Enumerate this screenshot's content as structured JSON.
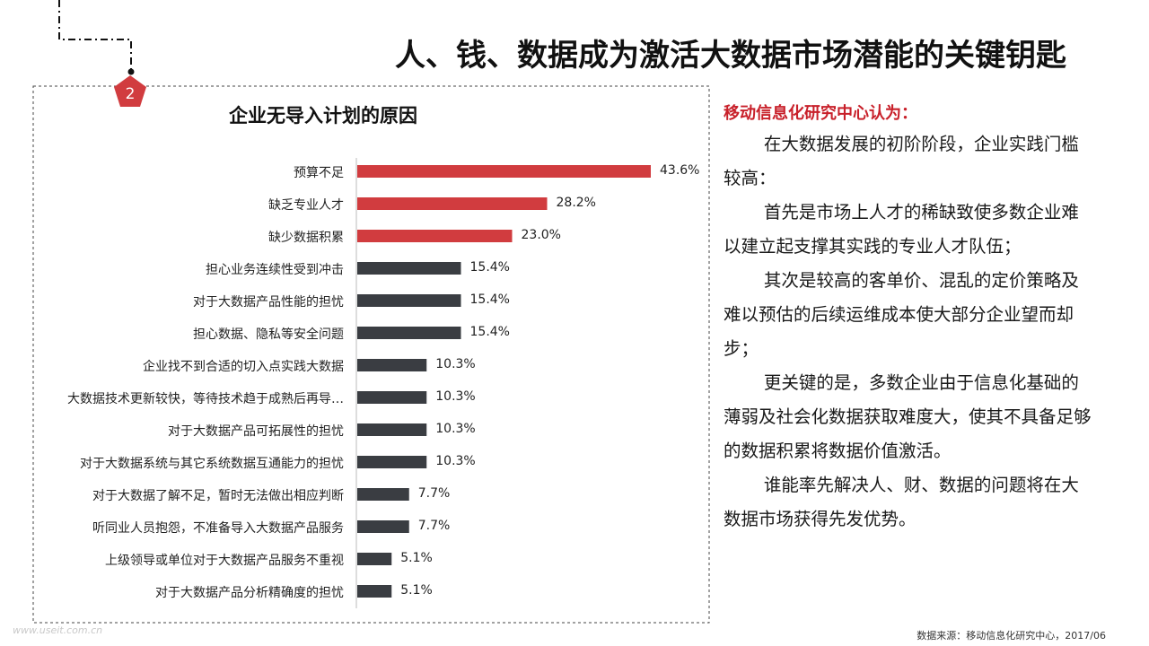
{
  "header": {
    "title": "人、钱、数据成为激活大数据市场潜能的关键钥匙",
    "badge_number": "2"
  },
  "chart_data": {
    "type": "bar",
    "orientation": "horizontal",
    "title": "企业无导入计划的原因",
    "categories": [
      "预算不足",
      "缺乏专业人才",
      "缺少数据积累",
      "担心业务连续性受到冲击",
      "对于大数据产品性能的担忧",
      "担心数据、隐私等安全问题",
      "企业找不到合适的切入点实践大数据",
      "大数据技术更新较快，等待技术趋于成熟后再导…",
      "对于大数据产品可拓展性的担忧",
      "对于大数据系统与其它系统数据互通能力的担忧",
      "对于大数据了解不足，暂时无法做出相应判断",
      "听同业人员抱怨，不准备导入大数据产品服务",
      "上级领导或单位对于大数据产品服务不重视",
      "对于大数据产品分析精确度的担忧"
    ],
    "values": [
      43.6,
      28.2,
      23.0,
      15.4,
      15.4,
      15.4,
      10.3,
      10.3,
      10.3,
      10.3,
      7.7,
      7.7,
      5.1,
      5.1
    ],
    "value_labels": [
      "43.6%",
      "28.2%",
      "23.0%",
      "15.4%",
      "15.4%",
      "15.4%",
      "10.3%",
      "10.3%",
      "10.3%",
      "10.3%",
      "7.7%",
      "7.7%",
      "5.1%",
      "5.1%"
    ],
    "highlight_count": 3,
    "colors": {
      "highlight": "#d13c3f",
      "default": "#3a3d42"
    },
    "xlim": [
      0,
      43.6
    ],
    "grid": false,
    "legend": "none"
  },
  "panel": {
    "heading": "移动信息化研究中心认为：",
    "paragraphs": [
      "在大数据发展的初阶阶段，企业实践门槛较高：",
      "首先是市场上人才的稀缺致使多数企业难以建立起支撑其实践的专业人才队伍；",
      "其次是较高的客单价、混乱的定价策略及难以预估的后续运维成本使大部分企业望而却步；",
      "更关键的是，多数企业由于信息化基础的薄弱及社会化数据获取难度大，使其不具备足够的数据积累将数据价值激活。",
      "谁能率先解决人、财、数据的问题将在大数据市场获得先发优势。"
    ]
  },
  "footer": {
    "source": "数据来源：移动信息化研究中心，2017/06",
    "watermark": "www.useit.com.cn"
  },
  "colors": {
    "accent": "#c8202a",
    "badge": "#d13c3f"
  }
}
